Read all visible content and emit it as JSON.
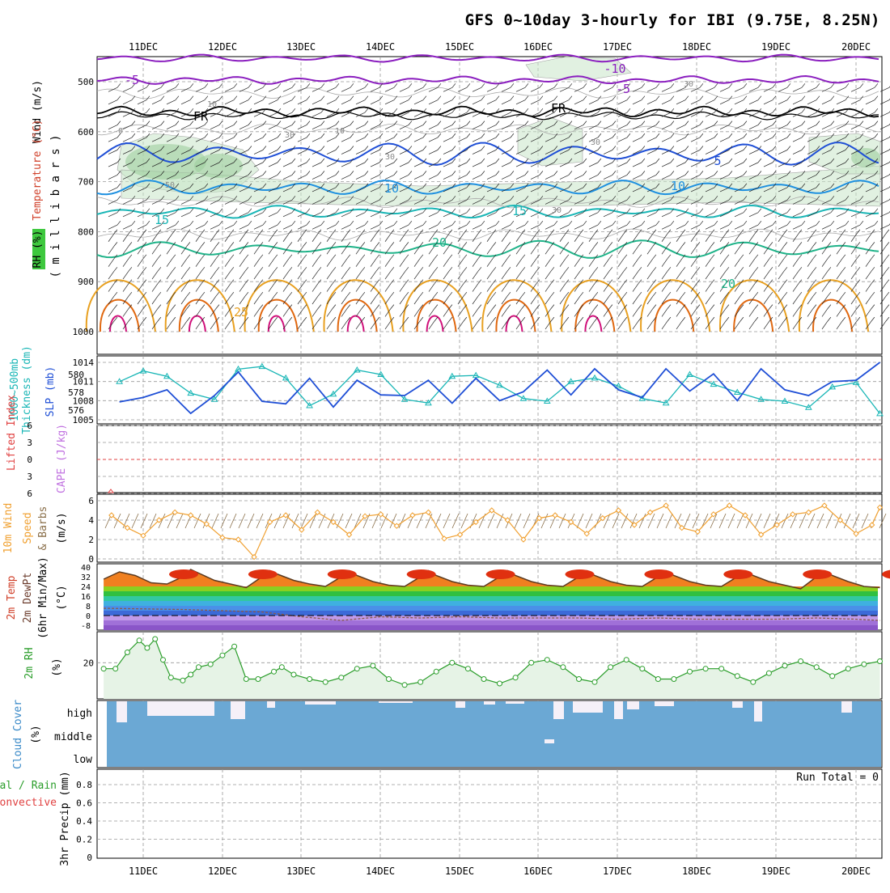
{
  "title": "GFS 0~10day 3-hourly for IBI (9.75E, 8.25N)",
  "dates": [
    "11DEC",
    "12DEC",
    "13DEC",
    "14DEC",
    "15DEC",
    "16DEC",
    "17DEC",
    "18DEC",
    "19DEC",
    "20DEC"
  ],
  "colors": {
    "purple": "#8b1fbf",
    "blue": "#1f4fd6",
    "lightblue": "#1e90e0",
    "cyan": "#19b6b6",
    "teal": "#1fb389",
    "orange": "#e8a020",
    "darkorange": "#e06810",
    "magenta": "#d0107a",
    "cloud": "#6ba8d4",
    "rh": "#2a9d2a",
    "windline": "#f0a030"
  },
  "panel_labels": {
    "upper_wind": "Wind (m/s)",
    "upper_temp": "Temperature (°C)",
    "upper_rh": "RH (%)",
    "upper_mb": "( m i l l i b a r s )",
    "thick_1": "1000~500mb",
    "thick_2": "Thickness (dm)",
    "slp": "SLP (mb)",
    "li": "Lifted Index",
    "cape": "CAPE (J/kg)",
    "w10_1": "10m Wind",
    "w10_2": "Speed",
    "w10_3": "& Barbs",
    "w10_unit": "(m/s)",
    "t2_1": "2m Temp",
    "t2_2": "2m DewPt",
    "t2_3": "(6hr Min/Max)",
    "t2_unit": "(°C)",
    "rh2_1": "2m RH",
    "rh2_unit": "(%)",
    "cloud_1": "Cloud Cover",
    "cloud_unit": "(%)",
    "cloud_high": "high",
    "cloud_mid": "middle",
    "cloud_low": "low",
    "precip_1": "3hr Precip (mm)",
    "precip_2": "Total / Rain",
    "precip_3": "Convective",
    "run_total": "Run Total = 0"
  },
  "chart_data": [
    {
      "type": "line",
      "panel": "upper-air",
      "ylabel": "( m i l l i b a r s )",
      "y_ticks": [
        500,
        600,
        700,
        800,
        900,
        1000
      ],
      "contour_labels": {
        "purple": [
          "-10",
          "-5",
          "-5"
        ],
        "black": [
          "FR",
          "FR"
        ],
        "blue": [
          "5"
        ],
        "lightblue": [
          "10",
          "10"
        ],
        "cyan": [
          "15",
          "15"
        ],
        "teal": [
          "20",
          "20"
        ],
        "orange": [
          "25"
        ],
        "grey_rh": [
          "10",
          "30",
          "30",
          "30",
          "30",
          "30",
          "50",
          "0",
          "10"
        ]
      }
    },
    {
      "type": "line",
      "panel": "thickness-slp",
      "y_ticks_left": [
        576,
        578,
        580
      ],
      "y_ticks_right": [
        1005,
        1008,
        1011,
        1014
      ],
      "series": [
        {
          "name": "Thickness (dm)",
          "x": [
            0.7,
            1.0,
            1.3,
            1.6,
            1.9,
            2.2,
            2.5,
            2.8,
            3.1,
            3.4,
            3.7,
            4.0,
            4.3,
            4.6,
            4.9,
            5.2,
            5.5,
            5.8,
            6.1,
            6.4,
            6.7,
            7.0,
            7.3,
            7.6,
            7.9,
            8.2,
            8.5,
            8.8,
            9.1,
            9.4,
            9.7,
            10.0,
            10.3
          ],
          "values": [
            579.2,
            580.4,
            579.8,
            577.9,
            577.2,
            580.6,
            580.9,
            579.6,
            576.5,
            577.8,
            580.5,
            580.0,
            577.2,
            576.8,
            579.8,
            579.9,
            578.8,
            577.3,
            577.0,
            579.2,
            579.6,
            578.7,
            577.3,
            576.8,
            580.0,
            578.9,
            578.0,
            577.2,
            577.0,
            576.3,
            578.6,
            579.1,
            575.6
          ]
        },
        {
          "name": "SLP (mb)",
          "x": [
            0.7,
            1.0,
            1.3,
            1.6,
            1.9,
            2.2,
            2.5,
            2.8,
            3.1,
            3.4,
            3.7,
            4.0,
            4.3,
            4.6,
            4.9,
            5.2,
            5.5,
            5.8,
            6.1,
            6.4,
            6.7,
            7.0,
            7.3,
            7.6,
            7.9,
            8.2,
            8.5,
            8.8,
            9.1,
            9.4,
            9.7,
            10.0,
            10.3
          ],
          "values": [
            1007.8,
            1008.5,
            1009.7,
            1006.0,
            1008.8,
            1012.5,
            1007.9,
            1007.5,
            1011.5,
            1007.0,
            1011.2,
            1008.9,
            1008.8,
            1011.2,
            1007.6,
            1011.5,
            1008.0,
            1009.4,
            1012.8,
            1008.9,
            1013.0,
            1009.7,
            1008.5,
            1013.0,
            1009.5,
            1012.2,
            1008.0,
            1013.0,
            1009.7,
            1008.8,
            1011.0,
            1011.2,
            1014.0
          ]
        }
      ]
    },
    {
      "type": "line",
      "panel": "lifted-index-cape",
      "y_ticks": [
        -6,
        -3,
        0,
        3,
        6
      ],
      "tick_labels": [
        "6",
        "3",
        "0",
        "3",
        "6"
      ]
    },
    {
      "type": "line",
      "panel": "10m-wind",
      "ylim": [
        0,
        6
      ],
      "y_ticks": [
        0,
        2,
        4,
        6
      ],
      "series": [
        {
          "name": "Speed",
          "x": [
            0.6,
            0.8,
            1.0,
            1.2,
            1.4,
            1.6,
            1.8,
            2.0,
            2.2,
            2.4,
            2.6,
            2.8,
            3.0,
            3.2,
            3.4,
            3.6,
            3.8,
            4.0,
            4.2,
            4.4,
            4.6,
            4.8,
            5.0,
            5.2,
            5.4,
            5.6,
            5.8,
            6.0,
            6.2,
            6.4,
            6.6,
            6.8,
            7.0,
            7.2,
            7.4,
            7.6,
            7.8,
            8.0,
            8.2,
            8.4,
            8.6,
            8.8,
            9.0,
            9.2,
            9.4,
            9.6,
            9.8,
            10.0,
            10.2,
            10.3
          ],
          "values": [
            4.5,
            3.2,
            2.4,
            4.0,
            4.8,
            4.5,
            3.6,
            2.2,
            2.0,
            0.2,
            3.8,
            4.5,
            3.0,
            4.8,
            3.8,
            2.5,
            4.4,
            4.6,
            3.4,
            4.5,
            4.8,
            2.1,
            2.5,
            3.8,
            5.0,
            4.0,
            2.0,
            4.2,
            4.5,
            3.8,
            2.6,
            4.2,
            5.0,
            3.5,
            4.8,
            5.5,
            3.2,
            2.8,
            4.6,
            5.5,
            4.5,
            2.5,
            3.5,
            4.6,
            4.8,
            5.5,
            4.0,
            2.6,
            3.5,
            5.3
          ]
        }
      ]
    },
    {
      "type": "area",
      "panel": "2m-temp",
      "y_ticks": [
        -8,
        0,
        8,
        16,
        24,
        32,
        40
      ],
      "series": [
        {
          "name": "2m Temp",
          "x": [
            0.5,
            0.7,
            0.9,
            1.1,
            1.3,
            1.5,
            1.6,
            1.7,
            1.9,
            2.1,
            2.3,
            2.5,
            2.6,
            2.7,
            2.9,
            3.1,
            3.3,
            3.5,
            3.6,
            3.7,
            3.9,
            4.1,
            4.3,
            4.5,
            4.6,
            4.7,
            4.9,
            5.1,
            5.3,
            5.5,
            5.6,
            5.7,
            5.9,
            6.1,
            6.3,
            6.5,
            6.6,
            6.7,
            6.9,
            7.1,
            7.3,
            7.5,
            7.6,
            7.7,
            7.9,
            8.1,
            8.3,
            8.5,
            8.6,
            8.7,
            8.9,
            9.1,
            9.3,
            9.5,
            9.6,
            9.7,
            9.9,
            10.1,
            10.3
          ],
          "values": [
            30,
            36,
            33,
            27,
            26,
            32,
            38,
            35,
            29,
            26,
            23,
            32,
            37,
            34,
            29,
            26,
            24,
            32,
            37,
            33,
            28,
            25,
            24,
            32,
            37,
            33,
            28,
            25,
            24,
            32,
            37,
            33,
            28,
            25,
            24,
            32,
            37,
            33,
            28,
            25,
            24,
            32,
            37,
            33,
            28,
            25,
            24,
            32,
            37,
            33,
            28,
            25,
            22,
            32,
            37,
            33,
            28,
            24,
            23
          ]
        },
        {
          "name": "2m DewPt",
          "x": [
            0.5,
            1.5,
            2.5,
            3.0,
            3.5,
            4.0,
            4.5,
            5.0,
            5.5,
            6.0,
            6.5,
            7.0,
            7.5,
            8.0,
            8.5,
            9.0,
            9.5,
            10.0,
            10.3
          ],
          "values": [
            6,
            5,
            3,
            -1,
            -4,
            -1,
            -2,
            -1,
            -2,
            -2,
            -2,
            -3,
            -2,
            -3,
            -3,
            -3,
            -2,
            -3,
            -4
          ]
        }
      ]
    },
    {
      "type": "area",
      "panel": "2m-rh",
      "y_ticks": [
        20
      ],
      "series": [
        {
          "name": "2m RH",
          "x": [
            0.5,
            0.65,
            0.8,
            0.95,
            1.05,
            1.15,
            1.25,
            1.35,
            1.5,
            1.6,
            1.7,
            1.85,
            2.0,
            2.15,
            2.3,
            2.45,
            2.65,
            2.75,
            2.9,
            3.1,
            3.3,
            3.5,
            3.7,
            3.9,
            4.1,
            4.3,
            4.5,
            4.7,
            4.9,
            5.1,
            5.3,
            5.5,
            5.7,
            5.9,
            6.1,
            6.3,
            6.5,
            6.7,
            6.9,
            7.1,
            7.3,
            7.5,
            7.7,
            7.9,
            8.1,
            8.3,
            8.5,
            8.7,
            8.9,
            9.1,
            9.3,
            9.5,
            9.7,
            9.9,
            10.1,
            10.3
          ],
          "values": [
            16,
            16,
            27,
            35,
            30,
            36,
            22,
            10,
            8,
            12,
            17,
            19,
            25,
            31,
            9,
            9,
            14,
            17,
            12,
            9,
            7,
            10,
            16,
            18,
            9,
            5,
            7,
            14,
            20,
            16,
            9,
            6,
            10,
            20,
            22,
            17,
            9,
            7,
            17,
            22,
            16,
            9,
            9,
            14,
            16,
            16,
            11,
            7,
            13,
            18,
            21,
            17,
            11,
            16,
            19,
            21
          ]
        }
      ]
    },
    {
      "type": "bar",
      "panel": "cloud-cover",
      "categories": [
        "high",
        "middle",
        "low"
      ],
      "ylim": [
        0,
        100
      ]
    },
    {
      "type": "bar",
      "panel": "3hr-precip",
      "ylim": [
        0,
        0.9
      ],
      "y_ticks": [
        0,
        0.2,
        0.4,
        0.6,
        0.8
      ],
      "values": []
    }
  ]
}
